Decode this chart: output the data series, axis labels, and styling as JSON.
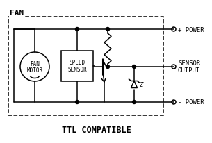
{
  "bg_color": "#ffffff",
  "line_color": "#000000",
  "text_color": "#000000",
  "fig_width": 3.05,
  "fig_height": 2.07,
  "dpi": 100,
  "fan_label": "FAN",
  "ttl_label": "TTL COMPATIBLE",
  "motor_label1": "FAN",
  "motor_label2": "MOTOR",
  "sensor_label1": "SPEED",
  "sensor_label2": "SENSOR",
  "power_plus": "+ POWER",
  "sensor_out1": "SENSOR",
  "sensor_out2": "OUTPUT",
  "power_minus": "- POWER"
}
